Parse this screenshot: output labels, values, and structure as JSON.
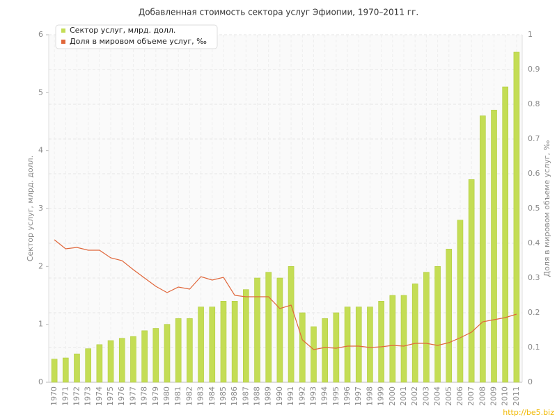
{
  "chart_data": {
    "type": "bar_line",
    "title": "Добавленная стоимость сектора услуг Эфиопии, 1970–2011 гг.",
    "ylabel": "Сектор услуг, млрд. долл.",
    "y2label": "Доля в мировом объеме услуг, ‰",
    "categories": [
      "1970",
      "1971",
      "1972",
      "1973",
      "1974",
      "1975",
      "1976",
      "1977",
      "1978",
      "1979",
      "1980",
      "1981",
      "1982",
      "1983",
      "1984",
      "1985",
      "1986",
      "1987",
      "1988",
      "1989",
      "1990",
      "1991",
      "1992",
      "1993",
      "1994",
      "1995",
      "1996",
      "1997",
      "1998",
      "1999",
      "2000",
      "2001",
      "2002",
      "2003",
      "2004",
      "2005",
      "2006",
      "2007",
      "2008",
      "2009",
      "2010",
      "2011"
    ],
    "series": [
      {
        "name": "Сектор услуг, млрд. долл.",
        "color": "#c4dd55",
        "kind": "bar",
        "values": [
          0.4,
          0.42,
          0.49,
          0.58,
          0.65,
          0.72,
          0.76,
          0.79,
          0.89,
          0.93,
          1.0,
          1.1,
          1.1,
          1.3,
          1.3,
          1.4,
          1.4,
          1.6,
          1.8,
          1.9,
          1.8,
          2.0,
          1.2,
          0.96,
          1.1,
          1.2,
          1.3,
          1.3,
          1.3,
          1.4,
          1.5,
          1.5,
          1.7,
          1.9,
          2.0,
          2.3,
          2.8,
          3.5,
          4.6,
          4.7,
          5.1,
          5.7
        ]
      },
      {
        "name": "Доля в мировом объеме услуг, ‰",
        "color": "#e0663a",
        "kind": "line",
        "axis": "y2",
        "values": [
          0.41,
          0.384,
          0.388,
          0.38,
          0.38,
          0.358,
          0.35,
          0.324,
          0.3,
          0.276,
          0.258,
          0.274,
          0.268,
          0.304,
          0.294,
          0.302,
          0.25,
          0.246,
          0.246,
          0.246,
          0.212,
          0.222,
          0.122,
          0.094,
          0.1,
          0.098,
          0.104,
          0.104,
          0.1,
          0.102,
          0.106,
          0.104,
          0.112,
          0.112,
          0.106,
          0.114,
          0.128,
          0.144,
          0.174,
          0.18,
          0.186,
          0.196
        ]
      }
    ],
    "ylim": [
      0,
      6
    ],
    "yticks": [
      0,
      1,
      2,
      3,
      4,
      5,
      6
    ],
    "y2lim": [
      0,
      1
    ],
    "y2ticks": [
      0,
      0.1,
      0.2,
      0.3,
      0.4,
      0.5,
      0.6,
      0.7,
      0.8,
      0.9,
      1
    ],
    "grid": true,
    "legend": "top-left",
    "watermark": "http://be5.biz"
  }
}
